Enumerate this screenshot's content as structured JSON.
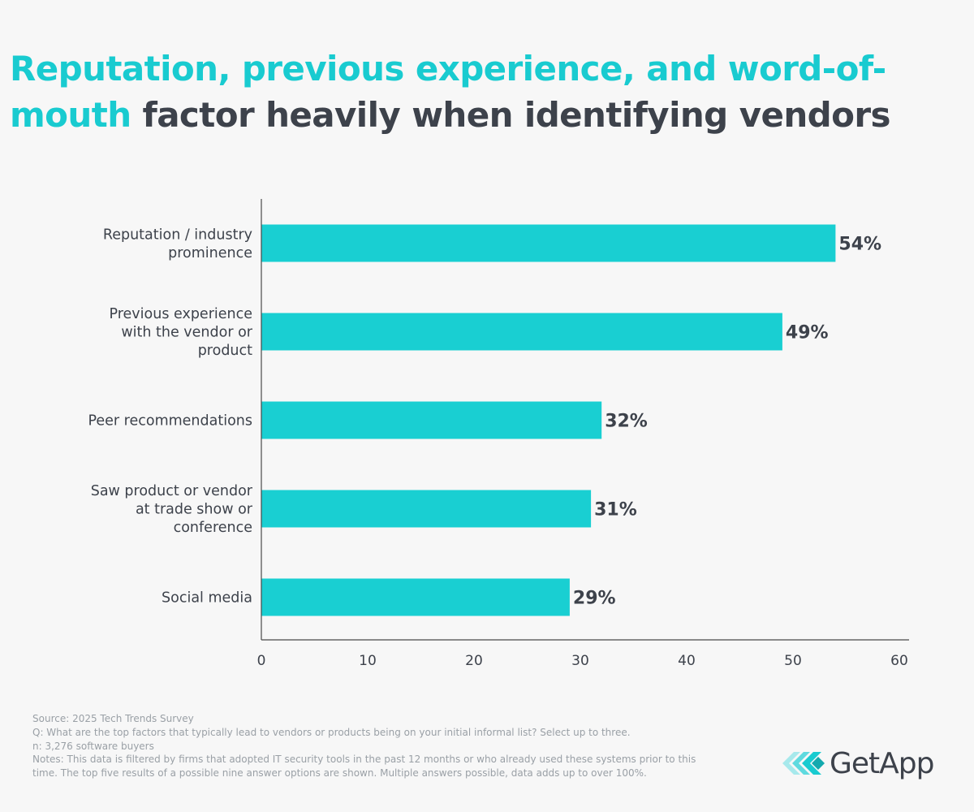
{
  "title": {
    "highlight_line1": "Reputation, previous experience, and word-of-",
    "highlight_line2": "mouth",
    "rest": " factor heavily when identifying vendors"
  },
  "colors": {
    "accent": "#19cfd2",
    "text": "#3d424b",
    "notes": "#9aa0a6",
    "background": "#f7f7f7"
  },
  "chart_data": {
    "type": "bar",
    "orientation": "horizontal",
    "title": "Reputation, previous experience, and word-of-mouth factor heavily when identifying vendors",
    "categories": [
      [
        "Reputation / industry",
        "prominence"
      ],
      [
        "Previous experience",
        "with the vendor or",
        "product"
      ],
      [
        "Peer recommendations"
      ],
      [
        "Saw product or vendor",
        "at trade show or",
        "conference"
      ],
      [
        "Social media"
      ]
    ],
    "values": [
      54,
      49,
      32,
      31,
      29
    ],
    "value_labels": [
      "54%",
      "49%",
      "32%",
      "31%",
      "29%"
    ],
    "xlim": [
      0,
      60
    ],
    "xticks": [
      0,
      10,
      20,
      30,
      40,
      50,
      60
    ],
    "xlabel": "",
    "ylabel": "",
    "grid": false,
    "legend": "none"
  },
  "footer": {
    "source": "Source: 2025 Tech Trends Survey",
    "question": "Q: What are the top factors that typically lead to vendors or products being on your initial informal list? Select up to three.",
    "sample": "n: 3,276 software buyers",
    "notes": "Notes: This data is filtered by firms that adopted IT security tools in the past 12 months or who already used these systems prior to this time. The top five results of a possible nine answer options are shown. Multiple answers possible, data adds up to over 100%."
  },
  "logo": {
    "icon": "getapp-chevron-icon",
    "text": "GetApp"
  }
}
